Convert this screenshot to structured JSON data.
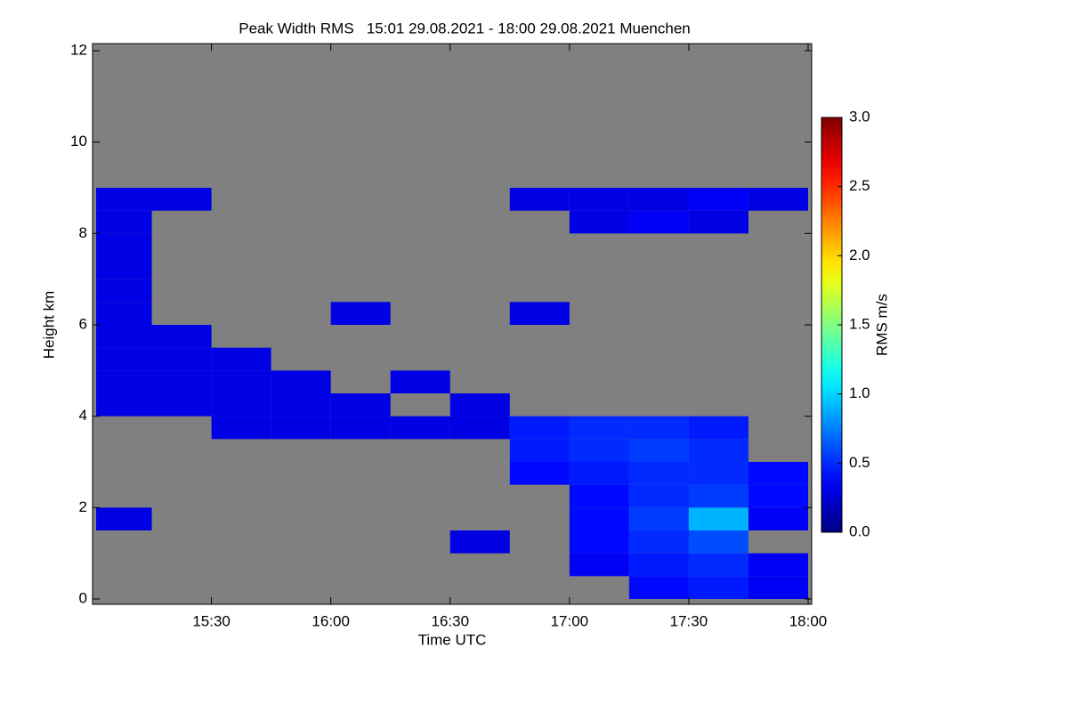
{
  "chart_data": {
    "type": "heatmap",
    "title": "Peak Width RMS   15:01 29.08.2021 - 18:00 29.08.2021 Muenchen",
    "x_label": "Time UTC",
    "y_label": "Height km",
    "colorbar_label": "RMS m/s",
    "x_bins": [
      15.0167,
      15.25,
      15.5,
      15.75,
      16.0,
      16.25,
      16.5,
      16.75,
      17.0,
      17.25,
      17.5,
      17.75,
      18.0
    ],
    "y_bins": [
      0,
      0.5,
      1,
      1.5,
      2,
      2.5,
      3,
      3.5,
      4,
      4.5,
      5,
      5.5,
      6,
      6.5,
      7,
      7.5,
      8,
      8.5,
      9,
      9.5,
      10,
      10.5,
      11,
      11.5,
      12
    ],
    "z": [
      [
        null,
        null,
        null,
        null,
        null,
        null,
        null,
        null,
        null,
        0.4,
        0.45,
        0.35
      ],
      [
        null,
        null,
        null,
        null,
        null,
        null,
        null,
        null,
        0.35,
        0.45,
        0.5,
        0.35
      ],
      [
        null,
        null,
        null,
        null,
        null,
        null,
        0.3,
        null,
        0.4,
        0.5,
        0.6,
        null
      ],
      [
        0.3,
        null,
        null,
        null,
        null,
        null,
        null,
        null,
        0.4,
        0.55,
        0.9,
        0.35
      ],
      [
        null,
        null,
        null,
        null,
        null,
        null,
        null,
        null,
        0.4,
        0.5,
        0.55,
        0.4
      ],
      [
        null,
        null,
        null,
        null,
        null,
        null,
        null,
        0.4,
        0.45,
        0.5,
        0.5,
        0.4
      ],
      [
        null,
        null,
        null,
        null,
        null,
        null,
        null,
        0.45,
        0.5,
        0.55,
        0.5,
        null
      ],
      [
        null,
        null,
        0.3,
        0.3,
        0.3,
        0.3,
        0.3,
        0.45,
        0.5,
        0.5,
        0.45,
        null
      ],
      [
        0.3,
        0.3,
        0.3,
        0.3,
        0.3,
        null,
        0.3,
        null,
        null,
        null,
        null,
        null
      ],
      [
        0.3,
        0.3,
        0.3,
        0.3,
        null,
        0.3,
        null,
        null,
        null,
        null,
        null,
        null
      ],
      [
        0.3,
        0.3,
        0.3,
        null,
        null,
        null,
        null,
        null,
        null,
        null,
        null,
        null
      ],
      [
        0.3,
        0.3,
        null,
        null,
        null,
        null,
        null,
        null,
        null,
        null,
        null,
        null
      ],
      [
        0.3,
        null,
        null,
        null,
        0.3,
        null,
        null,
        0.3,
        null,
        null,
        null,
        null
      ],
      [
        0.3,
        null,
        null,
        null,
        null,
        null,
        null,
        null,
        null,
        null,
        null,
        null
      ],
      [
        0.3,
        null,
        null,
        null,
        null,
        null,
        null,
        null,
        null,
        null,
        null,
        null
      ],
      [
        0.3,
        null,
        null,
        null,
        null,
        null,
        null,
        null,
        null,
        null,
        null,
        null
      ],
      [
        0.3,
        null,
        null,
        null,
        null,
        null,
        null,
        null,
        0.3,
        0.35,
        0.3,
        null
      ],
      [
        0.3,
        0.3,
        null,
        null,
        null,
        null,
        null,
        0.3,
        0.3,
        0.3,
        0.35,
        0.3
      ],
      [
        null,
        null,
        null,
        null,
        null,
        null,
        null,
        null,
        null,
        null,
        null,
        null
      ],
      [
        null,
        null,
        null,
        null,
        null,
        null,
        null,
        null,
        null,
        null,
        null,
        null
      ],
      [
        null,
        null,
        null,
        null,
        null,
        null,
        null,
        null,
        null,
        null,
        null,
        null
      ],
      [
        null,
        null,
        null,
        null,
        null,
        null,
        null,
        null,
        null,
        null,
        null,
        null
      ],
      [
        null,
        null,
        null,
        null,
        null,
        null,
        null,
        null,
        null,
        null,
        null,
        null
      ],
      [
        null,
        null,
        null,
        null,
        null,
        null,
        null,
        null,
        null,
        null,
        null,
        null
      ]
    ],
    "xlim": [
      15.0167,
      18.0
    ],
    "xticks": [
      {
        "value": 15.5,
        "label": "15:30"
      },
      {
        "value": 16.0,
        "label": "16:00"
      },
      {
        "value": 16.5,
        "label": "16:30"
      },
      {
        "value": 17.0,
        "label": "17:00"
      },
      {
        "value": 17.5,
        "label": "17:30"
      },
      {
        "value": 18.0,
        "label": "18:00"
      }
    ],
    "ylim": [
      0,
      12
    ],
    "yticks": [
      0,
      2,
      4,
      6,
      8,
      10,
      12
    ],
    "clim": [
      0,
      3
    ],
    "cticks": [
      {
        "value": 0,
        "label": "0.0"
      },
      {
        "value": 0.5,
        "label": "0.5"
      },
      {
        "value": 1,
        "label": "1.0"
      },
      {
        "value": 1.5,
        "label": "1.5"
      },
      {
        "value": 2,
        "label": "2.0"
      },
      {
        "value": 2.5,
        "label": "2.5"
      },
      {
        "value": 3,
        "label": "3.0"
      }
    ],
    "colormap": "jet",
    "missing_color": "#808080"
  }
}
